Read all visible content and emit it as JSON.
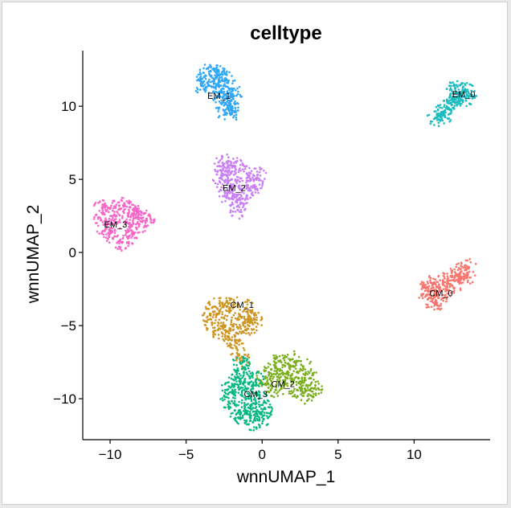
{
  "chart_data": {
    "type": "scatter",
    "title": "celltype",
    "xlabel": "wnnUMAP_1",
    "ylabel": "wnnUMAP_2",
    "xlim": [
      -11.8,
      15
    ],
    "ylim": [
      -12.8,
      13.8
    ],
    "xticks": [
      -10,
      -5,
      0,
      5,
      10
    ],
    "yticks": [
      -10,
      -5,
      0,
      5,
      10
    ],
    "grid": false,
    "legend": "none",
    "clusters": [
      {
        "label": "EM_1",
        "color": "#31a8f8",
        "label_x": -3.6,
        "label_y": 10.5,
        "points": [
          [
            -4.0,
            11.4
          ],
          [
            -3.8,
            12.0
          ],
          [
            -3.4,
            12.4
          ],
          [
            -2.9,
            12.1
          ],
          [
            -2.4,
            11.8
          ],
          [
            -2.0,
            11.2
          ],
          [
            -1.9,
            10.5
          ],
          [
            -2.2,
            10.0
          ],
          [
            -2.1,
            9.5
          ],
          [
            -2.6,
            10.6
          ],
          [
            -3.2,
            11.0
          ],
          [
            -3.6,
            11.6
          ],
          [
            -2.8,
            11.4
          ],
          [
            -2.4,
            10.8
          ],
          [
            -3.0,
            12.3
          ],
          [
            -2.0,
            9.9
          ],
          [
            -2.5,
            9.7
          ]
        ]
      },
      {
        "label": "EM_0",
        "color": "#1bbcbe",
        "label_x": 12.5,
        "label_y": 10.6,
        "points": [
          [
            11.4,
            9.2
          ],
          [
            11.8,
            9.6
          ],
          [
            12.2,
            9.9
          ],
          [
            12.6,
            10.3
          ],
          [
            13.0,
            10.8
          ],
          [
            13.4,
            11.1
          ],
          [
            13.6,
            10.7
          ],
          [
            12.8,
            10.9
          ],
          [
            12.4,
            10.2
          ],
          [
            12.0,
            9.4
          ],
          [
            13.2,
            10.4
          ],
          [
            12.7,
            11.2
          ]
        ]
      },
      {
        "label": "EM_2",
        "color": "#c87ef5",
        "label_x": -2.6,
        "label_y": 4.2,
        "points": [
          [
            -2.8,
            5.9
          ],
          [
            -2.3,
            6.2
          ],
          [
            -1.8,
            5.9
          ],
          [
            -1.0,
            5.4
          ],
          [
            -0.3,
            5.3
          ],
          [
            -0.5,
            4.6
          ],
          [
            -1.0,
            3.9
          ],
          [
            -1.4,
            3.4
          ],
          [
            -1.6,
            2.9
          ],
          [
            -2.0,
            3.7
          ],
          [
            -2.5,
            4.4
          ],
          [
            -2.7,
            5.1
          ],
          [
            -2.0,
            5.0
          ],
          [
            -1.5,
            4.4
          ],
          [
            -0.8,
            4.9
          ],
          [
            -2.2,
            5.6
          ],
          [
            -2.3,
            3.9
          ]
        ]
      },
      {
        "label": "EM_3",
        "color": "#f865c8",
        "label_x": -10.4,
        "label_y": 1.7,
        "points": [
          [
            -10.5,
            3.1
          ],
          [
            -10.0,
            3.0
          ],
          [
            -9.4,
            3.2
          ],
          [
            -8.7,
            3.1
          ],
          [
            -8.0,
            2.8
          ],
          [
            -7.6,
            2.3
          ],
          [
            -8.1,
            1.9
          ],
          [
            -8.6,
            1.5
          ],
          [
            -8.8,
            1.0
          ],
          [
            -9.2,
            0.7
          ],
          [
            -9.7,
            1.1
          ],
          [
            -10.3,
            1.6
          ],
          [
            -10.6,
            2.2
          ],
          [
            -9.6,
            2.5
          ],
          [
            -9.0,
            2.1
          ],
          [
            -8.3,
            2.4
          ],
          [
            -9.8,
            1.9
          ]
        ]
      },
      {
        "label": "CM_0",
        "color": "#f8766d",
        "label_x": 11.0,
        "label_y": -3.0,
        "points": [
          [
            10.6,
            -2.4
          ],
          [
            11.2,
            -2.1
          ],
          [
            11.9,
            -2.0
          ],
          [
            12.5,
            -1.6
          ],
          [
            13.1,
            -1.3
          ],
          [
            13.6,
            -1.0
          ],
          [
            13.5,
            -1.6
          ],
          [
            12.9,
            -2.0
          ],
          [
            12.2,
            -2.6
          ],
          [
            11.6,
            -3.1
          ],
          [
            11.4,
            -3.5
          ],
          [
            10.9,
            -3.2
          ],
          [
            11.7,
            -2.4
          ],
          [
            12.6,
            -1.9
          ],
          [
            11.1,
            -2.7
          ]
        ]
      },
      {
        "label": "CM_1",
        "color": "#cd9623",
        "label_x": -2.1,
        "label_y": -3.8,
        "points": [
          [
            -3.4,
            -4.2
          ],
          [
            -3.1,
            -3.7
          ],
          [
            -2.5,
            -3.6
          ],
          [
            -1.9,
            -3.6
          ],
          [
            -1.1,
            -3.8
          ],
          [
            -0.5,
            -4.3
          ],
          [
            -0.6,
            -4.9
          ],
          [
            -1.1,
            -5.3
          ],
          [
            -1.7,
            -5.5
          ],
          [
            -2.3,
            -5.4
          ],
          [
            -2.9,
            -5.3
          ],
          [
            -3.3,
            -4.8
          ],
          [
            -2.5,
            -4.5
          ],
          [
            -1.6,
            -4.6
          ],
          [
            -0.9,
            -4.4
          ],
          [
            -2.0,
            -6.0
          ],
          [
            -1.7,
            -6.5
          ],
          [
            -1.3,
            -7.4
          ]
        ]
      },
      {
        "label": "CM_2",
        "color": "#7bae1e",
        "label_x": 0.6,
        "label_y": -9.2,
        "points": [
          [
            0.2,
            -8.6
          ],
          [
            0.6,
            -8.0
          ],
          [
            1.2,
            -7.4
          ],
          [
            2.0,
            -7.3
          ],
          [
            2.7,
            -7.8
          ],
          [
            3.2,
            -8.6
          ],
          [
            3.4,
            -9.3
          ],
          [
            3.0,
            -9.8
          ],
          [
            2.3,
            -9.4
          ],
          [
            1.5,
            -9.0
          ],
          [
            0.9,
            -9.4
          ],
          [
            0.4,
            -9.0
          ],
          [
            1.6,
            -8.3
          ],
          [
            2.4,
            -8.6
          ],
          [
            2.9,
            -9.1
          ],
          [
            1.0,
            -8.5
          ],
          [
            1.9,
            -7.8
          ]
        ]
      },
      {
        "label": "CM_3",
        "color": "#05b780",
        "label_x": -1.2,
        "label_y": -9.9,
        "points": [
          [
            -2.3,
            -9.4
          ],
          [
            -1.8,
            -9.0
          ],
          [
            -1.2,
            -8.9
          ],
          [
            -0.6,
            -9.3
          ],
          [
            -0.2,
            -10.0
          ],
          [
            0.2,
            -10.7
          ],
          [
            0.1,
            -11.4
          ],
          [
            -0.6,
            -11.6
          ],
          [
            -1.3,
            -11.3
          ],
          [
            -1.8,
            -10.8
          ],
          [
            -2.2,
            -10.2
          ],
          [
            -1.3,
            -9.8
          ],
          [
            -0.7,
            -10.4
          ],
          [
            -1.0,
            -11.0
          ],
          [
            -0.4,
            -10.9
          ],
          [
            -1.6,
            -8.5
          ],
          [
            -1.1,
            -8.0
          ],
          [
            -1.4,
            -7.6
          ],
          [
            -0.4,
            -8.7
          ]
        ]
      }
    ]
  }
}
